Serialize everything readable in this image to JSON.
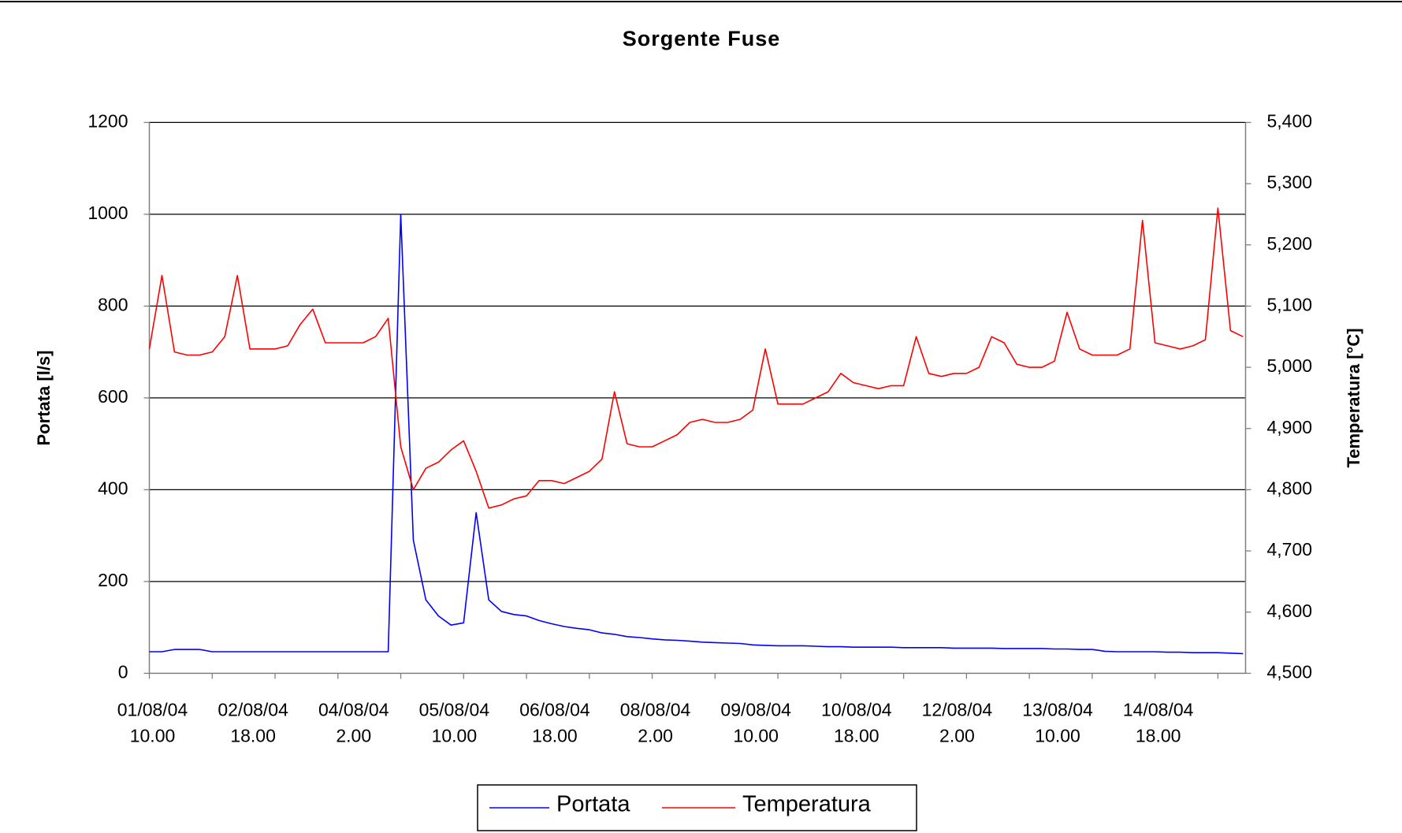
{
  "chart_data": {
    "type": "line",
    "title": "Sorgente Fuse",
    "y_label": "Portata [l/s]",
    "y2_label": "Temperatura [°C]",
    "categories": [
      "01/08/04 10.00",
      null,
      null,
      null,
      null,
      null,
      null,
      null,
      "02/08/04 18.00",
      null,
      null,
      null,
      null,
      null,
      null,
      null,
      "04/08/04 2.00",
      null,
      null,
      null,
      null,
      null,
      null,
      null,
      "05/08/04 10.00",
      null,
      null,
      null,
      null,
      null,
      null,
      null,
      "06/08/04 18.00",
      null,
      null,
      null,
      null,
      null,
      null,
      null,
      "08/08/04 2.00",
      null,
      null,
      null,
      null,
      null,
      null,
      null,
      "09/08/04 10.00",
      null,
      null,
      null,
      null,
      null,
      null,
      null,
      "10/08/04 18.00",
      null,
      null,
      null,
      null,
      null,
      null,
      null,
      "12/08/04 2.00",
      null,
      null,
      null,
      null,
      null,
      null,
      null,
      "13/08/04 10.00",
      null,
      null,
      null,
      null,
      null,
      null,
      null,
      "14/08/04 18.00",
      null,
      null,
      null,
      null,
      null,
      null,
      null
    ],
    "ylim": [
      0,
      1200
    ],
    "yticks": [
      0,
      200,
      400,
      600,
      800,
      1000,
      1200
    ],
    "y2lim": [
      4500,
      5400
    ],
    "y2ticks": [
      {
        "value": 4500,
        "label": "4,500"
      },
      {
        "value": 4600,
        "label": "4,600"
      },
      {
        "value": 4700,
        "label": "4,700"
      },
      {
        "value": 4800,
        "label": "4,800"
      },
      {
        "value": 4900,
        "label": "4,900"
      },
      {
        "value": 5000,
        "label": "5,000"
      },
      {
        "value": 5100,
        "label": "5,100"
      },
      {
        "value": 5200,
        "label": "5,200"
      },
      {
        "value": 5300,
        "label": "5,300"
      },
      {
        "value": 5400,
        "label": "5,400"
      }
    ],
    "grid": true,
    "legend": "bottom",
    "series": [
      {
        "name": "Portata",
        "color": "#0000ff",
        "values": [
          47,
          47,
          52,
          52,
          52,
          47,
          47,
          47,
          47,
          47,
          47,
          47,
          47,
          47,
          47,
          47,
          47,
          47,
          47,
          47,
          1000,
          290,
          160,
          125,
          105,
          110,
          350,
          160,
          135,
          128,
          125,
          115,
          108,
          102,
          98,
          95,
          88,
          85,
          80,
          78,
          75,
          73,
          72,
          70,
          68,
          67,
          66,
          65,
          62,
          61,
          60,
          60,
          60,
          59,
          58,
          58,
          57,
          57,
          57,
          57,
          56,
          56,
          56,
          56,
          55,
          55,
          55,
          55,
          54,
          54,
          54,
          54,
          53,
          53,
          52,
          52,
          48,
          47,
          47,
          47,
          47,
          46,
          46,
          45,
          45,
          45,
          44,
          43
        ]
      },
      {
        "name": "Temperatura",
        "color": "#ff0000",
        "axis": "y2",
        "values": [
          5030,
          5150,
          5025,
          5020,
          5020,
          5025,
          5050,
          5150,
          5030,
          5030,
          5030,
          5035,
          5070,
          5095,
          5040,
          5040,
          5040,
          5040,
          5050,
          5080,
          4870,
          4800,
          4835,
          4845,
          4865,
          4880,
          4830,
          4770,
          4775,
          4785,
          4790,
          4815,
          4815,
          4810,
          4820,
          4830,
          4850,
          4960,
          4875,
          4870,
          4870,
          4880,
          4890,
          4910,
          4915,
          4910,
          4910,
          4915,
          4930,
          5030,
          4940,
          4940,
          4940,
          4950,
          4960,
          4990,
          4975,
          4970,
          4965,
          4970,
          4970,
          5050,
          4990,
          4985,
          4990,
          4990,
          5000,
          5050,
          5040,
          5005,
          5000,
          5000,
          5010,
          5090,
          5030,
          5020,
          5020,
          5020,
          5030,
          5240,
          5040,
          5035,
          5030,
          5035,
          5045,
          5260,
          5060,
          5050
        ]
      }
    ]
  }
}
